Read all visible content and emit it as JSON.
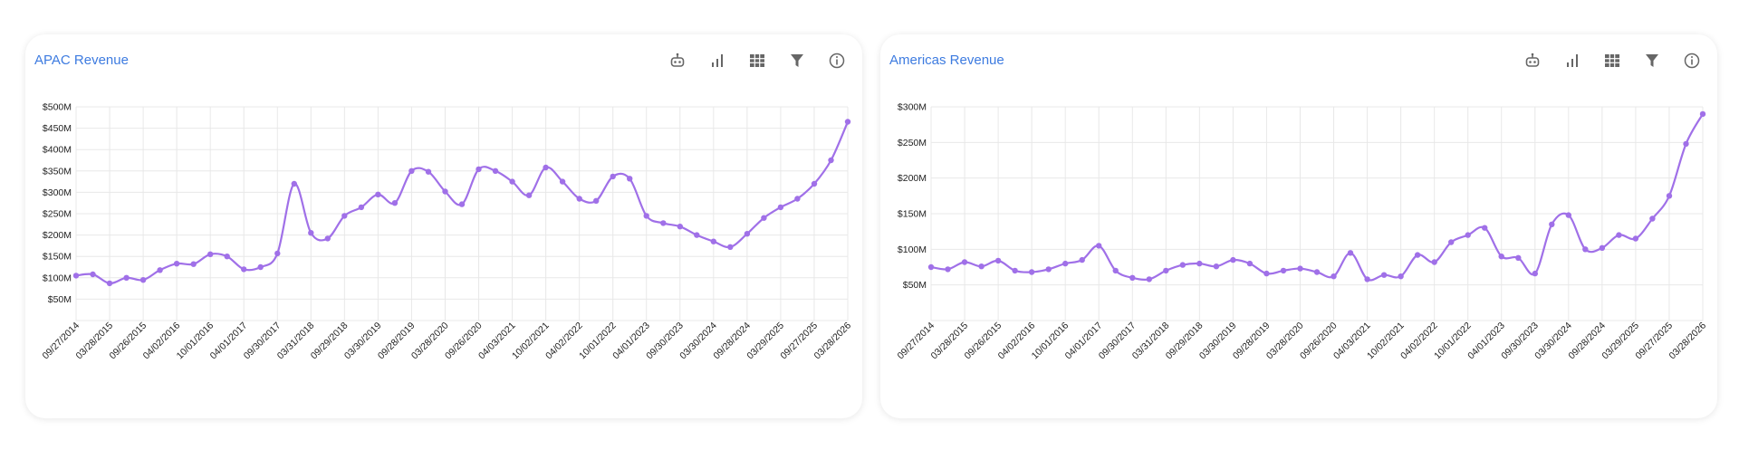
{
  "colors": {
    "title": "#3d7be0",
    "line": "#a070e8",
    "grid": "#e8e8e8",
    "icon": "#666666"
  },
  "toolbar_icons": [
    "robot-icon",
    "bar-chart-icon",
    "grid-icon",
    "filter-icon",
    "info-icon"
  ],
  "panels": [
    {
      "title": "APAC Revenue"
    },
    {
      "title": "Americas Revenue"
    }
  ],
  "chart_data": [
    {
      "type": "line",
      "title": "APAC Revenue",
      "xlabel": "",
      "ylabel": "",
      "ylim": [
        0,
        500
      ],
      "y_ticks": [
        50,
        100,
        150,
        200,
        250,
        300,
        350,
        400,
        450,
        500
      ],
      "y_tick_labels": [
        "$50M",
        "$100M",
        "$150M",
        "$200M",
        "$250M",
        "$300M",
        "$350M",
        "$400M",
        "$450M",
        "$500M"
      ],
      "x_tick_labels": [
        "09/27/2014",
        "03/28/2015",
        "09/26/2015",
        "04/02/2016",
        "10/01/2016",
        "04/01/2017",
        "09/30/2017",
        "03/31/2018",
        "09/29/2018",
        "03/30/2019",
        "09/28/2019",
        "03/28/2020",
        "09/26/2020",
        "04/03/2021",
        "10/02/2021",
        "04/02/2022",
        "10/01/2022",
        "04/01/2023",
        "09/30/2023",
        "03/30/2024",
        "09/28/2024",
        "03/29/2025",
        "09/27/2025",
        "03/28/2026"
      ],
      "grid": true,
      "series": [
        {
          "values": [
            105,
            108,
            87,
            100,
            95,
            118,
            133,
            132,
            155,
            150,
            120,
            125,
            157,
            320,
            205,
            192,
            245,
            265,
            295,
            275,
            350,
            348,
            302,
            272,
            354,
            350,
            325,
            293,
            358,
            325,
            285,
            280,
            337,
            332,
            245,
            228,
            220,
            200,
            185,
            172,
            203,
            240,
            265,
            285,
            320,
            375,
            465
          ]
        }
      ]
    },
    {
      "type": "line",
      "title": "Americas Revenue",
      "xlabel": "",
      "ylabel": "",
      "ylim": [
        0,
        300
      ],
      "y_ticks": [
        50,
        100,
        150,
        200,
        250,
        300
      ],
      "y_tick_labels": [
        "$50M",
        "$100M",
        "$150M",
        "$200M",
        "$250M",
        "$300M"
      ],
      "x_tick_labels": [
        "09/27/2014",
        "03/28/2015",
        "09/26/2015",
        "04/02/2016",
        "10/01/2016",
        "04/01/2017",
        "09/30/2017",
        "03/31/2018",
        "09/29/2018",
        "03/30/2019",
        "09/28/2019",
        "03/28/2020",
        "09/26/2020",
        "04/03/2021",
        "10/02/2021",
        "04/02/2022",
        "10/01/2022",
        "04/01/2023",
        "09/30/2023",
        "03/30/2024",
        "09/28/2024",
        "03/29/2025",
        "09/27/2025",
        "03/28/2026"
      ],
      "grid": true,
      "series": [
        {
          "values": [
            75,
            72,
            82,
            76,
            84,
            70,
            68,
            72,
            80,
            85,
            105,
            70,
            60,
            58,
            70,
            78,
            80,
            76,
            85,
            80,
            66,
            70,
            73,
            68,
            62,
            95,
            58,
            64,
            62,
            92,
            82,
            110,
            120,
            130,
            90,
            88,
            66,
            135,
            148,
            100,
            102,
            120,
            115,
            143,
            175,
            248,
            290
          ]
        }
      ]
    }
  ]
}
